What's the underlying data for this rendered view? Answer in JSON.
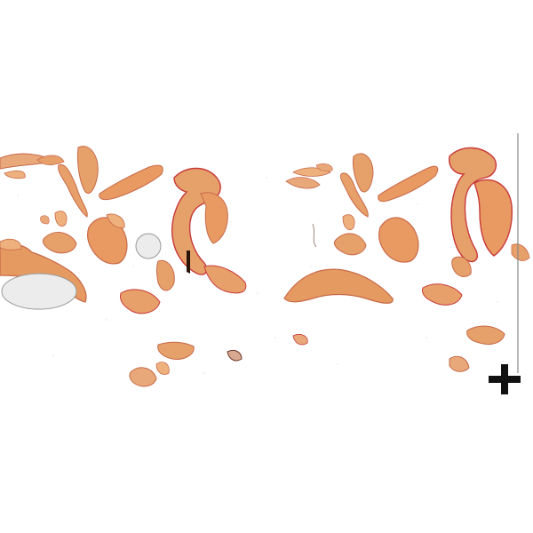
{
  "viewer": {
    "background": "#ffffff",
    "subject": "histology-slide-scan",
    "stain_palette": {
      "tissue_fill": "#e8a06a",
      "tissue_fill_light": "#eeb07c",
      "tissue_edge": "#c86a4a",
      "stain_accent": "#c83a3a",
      "mount_bubble_fill": "#ececec",
      "mount_bubble_edge": "#9a9a9a",
      "fold_artifact": "#2a1408"
    },
    "controls": {
      "crosshair_icon": "plus-marker-icon",
      "crosshair_color": "#111111",
      "edge_line_color": "#8a8a8a"
    }
  }
}
